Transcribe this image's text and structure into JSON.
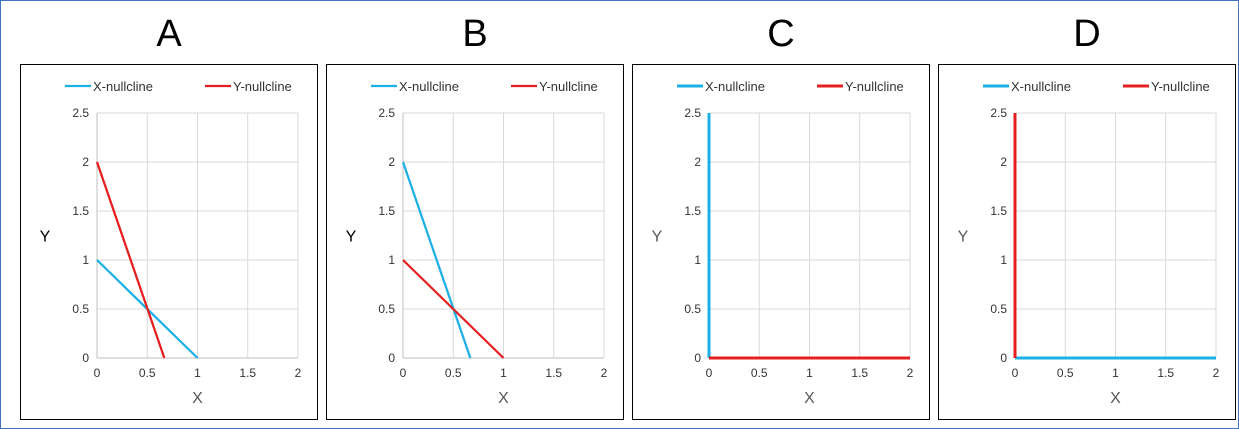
{
  "colors": {
    "x_nullcline": "#1cb0e6",
    "y_nullcline": "#e51f1f",
    "grid": "#d9d9d9"
  },
  "chart_data": [
    {
      "panel": "A",
      "type": "line",
      "xlabel": "X",
      "ylabel": "Y",
      "xlim": [
        0,
        2
      ],
      "ylim": [
        0,
        2.5
      ],
      "xticks": [
        "0",
        "0.5",
        "1",
        "1.5",
        "2"
      ],
      "yticks": [
        "0",
        "0.5",
        "1",
        "1.5",
        "2",
        "2.5"
      ],
      "legend_position": "top",
      "series": [
        {
          "name": "X-nullcline",
          "color": "#1cb0e6",
          "points": [
            [
              0,
              1
            ],
            [
              1,
              0
            ]
          ]
        },
        {
          "name": "Y-nullcline",
          "color": "#e51f1f",
          "points": [
            [
              0,
              2
            ],
            [
              0.67,
              0
            ]
          ]
        }
      ]
    },
    {
      "panel": "B",
      "type": "line",
      "xlabel": "X",
      "ylabel": "Y",
      "xlim": [
        0,
        2
      ],
      "ylim": [
        0,
        2.5
      ],
      "xticks": [
        "0",
        "0.5",
        "1",
        "1.5",
        "2"
      ],
      "yticks": [
        "0",
        "0.5",
        "1",
        "1.5",
        "2",
        "2.5"
      ],
      "legend_position": "top",
      "series": [
        {
          "name": "X-nullcline",
          "color": "#1cb0e6",
          "points": [
            [
              0,
              2
            ],
            [
              0.67,
              0
            ]
          ]
        },
        {
          "name": "Y-nullcline",
          "color": "#e51f1f",
          "points": [
            [
              0,
              1
            ],
            [
              1,
              0
            ]
          ]
        }
      ]
    },
    {
      "panel": "C",
      "type": "line",
      "xlabel": "X",
      "ylabel": "Y",
      "xlim": [
        0,
        2
      ],
      "ylim": [
        0,
        2.5
      ],
      "xticks": [
        "0",
        "0.5",
        "1",
        "1.5",
        "2"
      ],
      "yticks": [
        "0",
        "0.5",
        "1",
        "1.5",
        "2",
        "2.5"
      ],
      "legend_position": "top",
      "series": [
        {
          "name": "X-nullcline",
          "color": "#1cb0e6",
          "points": [
            [
              0,
              0
            ],
            [
              0,
              2.5
            ]
          ]
        },
        {
          "name": "Y-nullcline",
          "color": "#e51f1f",
          "points": [
            [
              0,
              0
            ],
            [
              2,
              0
            ]
          ]
        }
      ]
    },
    {
      "panel": "D",
      "type": "line",
      "xlabel": "X",
      "ylabel": "Y",
      "xlim": [
        0,
        2
      ],
      "ylim": [
        0,
        2.5
      ],
      "xticks": [
        "0",
        "0.5",
        "1",
        "1.5",
        "2"
      ],
      "yticks": [
        "0",
        "0.5",
        "1",
        "1.5",
        "2",
        "2.5"
      ],
      "legend_position": "top",
      "series": [
        {
          "name": "X-nullcline",
          "color": "#1cb0e6",
          "points": [
            [
              0,
              0
            ],
            [
              2,
              0
            ]
          ]
        },
        {
          "name": "Y-nullcline",
          "color": "#e51f1f",
          "points": [
            [
              0,
              0
            ],
            [
              0,
              2.5
            ]
          ]
        }
      ]
    }
  ]
}
